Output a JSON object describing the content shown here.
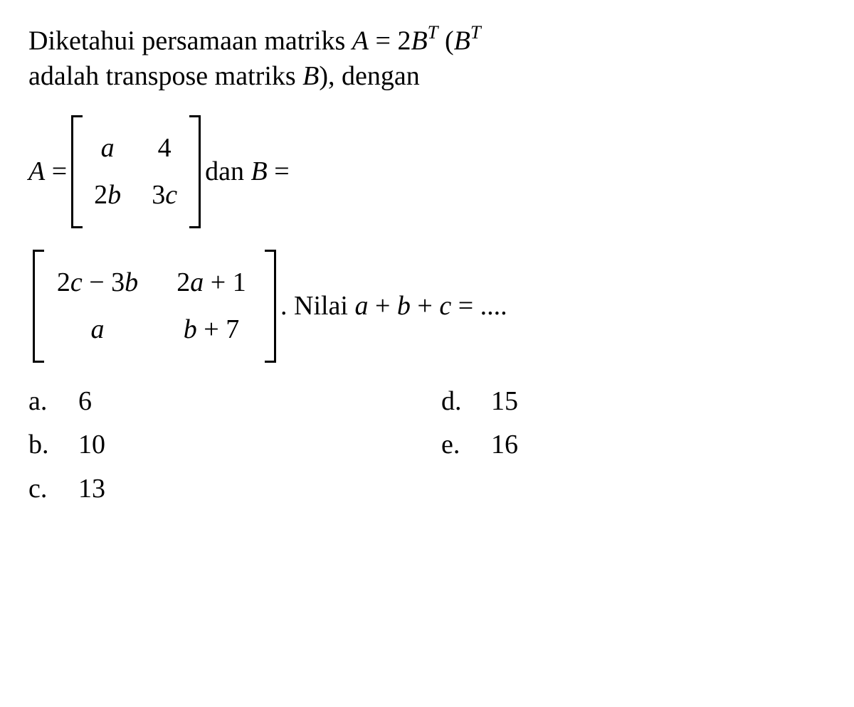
{
  "intro": {
    "line1_pre": "Diketahui persamaan matriks ",
    "A": "A",
    "eq1": " = 2",
    "B": "B",
    "T": "T",
    "paren_open": " (",
    "line2_pre": "adalah transpose matriks ",
    "paren_close": "), dengan"
  },
  "matrixA": {
    "lhs": "A",
    "eq": " = ",
    "cells": {
      "r1c1": "a",
      "r1c2": "4",
      "r2c1": "2b",
      "r2c2": "3c"
    },
    "post_dan": " dan ",
    "post_B": "B",
    "post_eq": " ="
  },
  "matrixB": {
    "cells": {
      "r1c1": "2c − 3b",
      "r1c2": "2a + 1",
      "r2c1": "a",
      "r2c2": "b + 7"
    },
    "post_dot": ". Nilai ",
    "expr_a": "a",
    "expr_plus1": " + ",
    "expr_b": "b",
    "expr_plus2": " + ",
    "expr_c": "c",
    "expr_eq": " = ...."
  },
  "options": {
    "a": {
      "label": "a.",
      "value": "6"
    },
    "b": {
      "label": "b.",
      "value": "10"
    },
    "c": {
      "label": "c.",
      "value": "13"
    },
    "d": {
      "label": "d.",
      "value": "15"
    },
    "e": {
      "label": "e.",
      "value": "16"
    }
  },
  "style": {
    "font_size_pt": 38,
    "text_color": "#000000",
    "background_color": "#ffffff",
    "bracket_color": "#000000"
  }
}
